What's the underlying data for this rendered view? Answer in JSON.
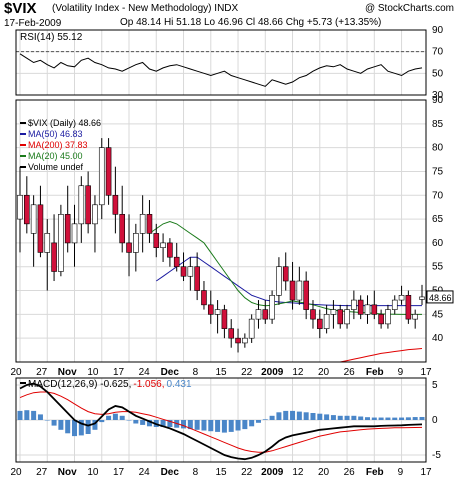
{
  "header": {
    "ticker": "$VIX",
    "name": "(Volatility Index - New Methodology) INDX",
    "credit": "@ StockCharts.com",
    "date": "17-Feb-2009",
    "open_label": "Op",
    "open": "48.14",
    "high_label": "Hi",
    "high": "51.18",
    "low_label": "Lo",
    "low": "46.96",
    "close_label": "Cl",
    "close": "48.66",
    "change_label": "Chg",
    "change": "+5.73 (+13.35%)"
  },
  "colors": {
    "up": "#ffffff",
    "down": "#d0103a",
    "ma50": "#1a1aa0",
    "ma200": "#e00000",
    "ma20": "#1a7a1a",
    "macd_line": "#000000",
    "macd_signal": "#e00000",
    "histogram": "#4a86c8",
    "grid": "#d9d9d9"
  },
  "chart_data": [
    {
      "type": "line",
      "panel": "RSI",
      "legend": "RSI(14) 55.12",
      "ylim": [
        30,
        90
      ],
      "yticks": [
        90,
        70,
        50,
        30
      ],
      "reference_lines": [
        70,
        30
      ],
      "values": [
        68,
        64,
        60,
        62,
        58,
        55,
        60,
        57,
        56,
        62,
        64,
        60,
        58,
        55,
        54,
        52,
        55,
        58,
        60,
        54,
        52,
        55,
        57,
        58,
        56,
        54,
        52,
        50,
        48,
        50,
        52,
        48,
        46,
        44,
        42,
        40,
        38,
        44,
        42,
        40,
        42,
        46,
        48,
        52,
        55,
        57,
        56,
        58,
        54,
        52,
        50,
        54,
        56,
        58,
        52,
        50,
        48,
        52,
        54,
        55
      ]
    },
    {
      "type": "candlestick",
      "panel": "Price",
      "ylim": [
        35,
        90
      ],
      "yticks": [
        90,
        85,
        80,
        75,
        70,
        65,
        60,
        55,
        50,
        45,
        40
      ],
      "last_value": "48.66",
      "legend": [
        {
          "label": "$VIX (Daily) 48.66",
          "key": "price"
        },
        {
          "label": "MA(50) 46.83",
          "key": "ma50"
        },
        {
          "label": "MA(200) 37.83",
          "key": "ma200"
        },
        {
          "label": "MA(20) 45.00",
          "key": "ma20"
        },
        {
          "label": "Volume undef",
          "key": "volume"
        }
      ],
      "x_tick_labels": [
        "20",
        "27",
        "Nov",
        "10",
        "17",
        "24",
        "Dec",
        "8",
        "15",
        "22",
        "2009",
        "12",
        "20",
        "26",
        "Feb",
        "9",
        "17"
      ],
      "candles": [
        {
          "o": 65,
          "h": 76,
          "l": 58,
          "c": 70
        },
        {
          "o": 70,
          "h": 74,
          "l": 62,
          "c": 64
        },
        {
          "o": 62,
          "h": 70,
          "l": 55,
          "c": 68
        },
        {
          "o": 68,
          "h": 72,
          "l": 57,
          "c": 58
        },
        {
          "o": 58,
          "h": 65,
          "l": 50,
          "c": 62
        },
        {
          "o": 60,
          "h": 66,
          "l": 52,
          "c": 54
        },
        {
          "o": 54,
          "h": 68,
          "l": 53,
          "c": 66
        },
        {
          "o": 66,
          "h": 72,
          "l": 58,
          "c": 60
        },
        {
          "o": 60,
          "h": 68,
          "l": 55,
          "c": 64
        },
        {
          "o": 64,
          "h": 74,
          "l": 60,
          "c": 72
        },
        {
          "o": 72,
          "h": 75,
          "l": 62,
          "c": 64
        },
        {
          "o": 64,
          "h": 70,
          "l": 58,
          "c": 68
        },
        {
          "o": 68,
          "h": 82,
          "l": 65,
          "c": 80
        },
        {
          "o": 80,
          "h": 82,
          "l": 68,
          "c": 70
        },
        {
          "o": 70,
          "h": 76,
          "l": 62,
          "c": 66
        },
        {
          "o": 66,
          "h": 72,
          "l": 58,
          "c": 60
        },
        {
          "o": 60,
          "h": 66,
          "l": 53,
          "c": 58
        },
        {
          "o": 58,
          "h": 64,
          "l": 54,
          "c": 62
        },
        {
          "o": 62,
          "h": 70,
          "l": 58,
          "c": 66
        },
        {
          "o": 66,
          "h": 69,
          "l": 60,
          "c": 62
        },
        {
          "o": 62,
          "h": 64,
          "l": 57,
          "c": 59
        },
        {
          "o": 59,
          "h": 62,
          "l": 56,
          "c": 60
        },
        {
          "o": 60,
          "h": 61,
          "l": 55,
          "c": 57
        },
        {
          "o": 57,
          "h": 60,
          "l": 54,
          "c": 55
        },
        {
          "o": 55,
          "h": 58,
          "l": 52,
          "c": 53
        },
        {
          "o": 53,
          "h": 57,
          "l": 50,
          "c": 55
        },
        {
          "o": 55,
          "h": 58,
          "l": 48,
          "c": 50
        },
        {
          "o": 50,
          "h": 52,
          "l": 46,
          "c": 47
        },
        {
          "o": 47,
          "h": 50,
          "l": 43,
          "c": 45
        },
        {
          "o": 45,
          "h": 48,
          "l": 41,
          "c": 46
        },
        {
          "o": 46,
          "h": 47,
          "l": 40,
          "c": 42
        },
        {
          "o": 42,
          "h": 44,
          "l": 38,
          "c": 40
        },
        {
          "o": 40,
          "h": 42,
          "l": 37,
          "c": 39
        },
        {
          "o": 39,
          "h": 41,
          "l": 38,
          "c": 40
        },
        {
          "o": 40,
          "h": 45,
          "l": 39,
          "c": 44
        },
        {
          "o": 44,
          "h": 48,
          "l": 42,
          "c": 46
        },
        {
          "o": 46,
          "h": 48,
          "l": 43,
          "c": 44
        },
        {
          "o": 44,
          "h": 50,
          "l": 43,
          "c": 49
        },
        {
          "o": 49,
          "h": 57,
          "l": 47,
          "c": 55
        },
        {
          "o": 55,
          "h": 58,
          "l": 50,
          "c": 52
        },
        {
          "o": 52,
          "h": 56,
          "l": 46,
          "c": 48
        },
        {
          "o": 48,
          "h": 55,
          "l": 47,
          "c": 52
        },
        {
          "o": 52,
          "h": 54,
          "l": 44,
          "c": 46
        },
        {
          "o": 46,
          "h": 48,
          "l": 42,
          "c": 44
        },
        {
          "o": 44,
          "h": 46,
          "l": 40,
          "c": 42
        },
        {
          "o": 42,
          "h": 47,
          "l": 41,
          "c": 45
        },
        {
          "o": 45,
          "h": 48,
          "l": 42,
          "c": 46
        },
        {
          "o": 46,
          "h": 47,
          "l": 42,
          "c": 43
        },
        {
          "o": 43,
          "h": 47,
          "l": 42,
          "c": 46
        },
        {
          "o": 46,
          "h": 50,
          "l": 44,
          "c": 48
        },
        {
          "o": 48,
          "h": 49,
          "l": 44,
          "c": 45
        },
        {
          "o": 45,
          "h": 49,
          "l": 43,
          "c": 47
        },
        {
          "o": 47,
          "h": 50,
          "l": 44,
          "c": 45
        },
        {
          "o": 45,
          "h": 46,
          "l": 42,
          "c": 43
        },
        {
          "o": 43,
          "h": 47,
          "l": 42,
          "c": 46
        },
        {
          "o": 46,
          "h": 49,
          "l": 45,
          "c": 48
        },
        {
          "o": 48,
          "h": 51,
          "l": 47,
          "c": 49
        },
        {
          "o": 49,
          "h": 50,
          "l": 43,
          "c": 44
        },
        {
          "o": 44,
          "h": 46,
          "l": 42,
          "c": 45
        },
        {
          "o": 48.14,
          "h": 51.18,
          "l": 46.96,
          "c": 48.66
        }
      ],
      "ma50": [
        null,
        null,
        null,
        null,
        null,
        null,
        null,
        null,
        null,
        null,
        null,
        null,
        null,
        null,
        null,
        null,
        null,
        null,
        null,
        null,
        52,
        53,
        54,
        55,
        56,
        57,
        57,
        56,
        55,
        54,
        53,
        52,
        51,
        50,
        49,
        48.5,
        48,
        47.8,
        47.6,
        47.5,
        47.4,
        47.3,
        47.2,
        47.1,
        47,
        46.95,
        46.9,
        46.87,
        46.85,
        46.84,
        46.83,
        46.83,
        46.83,
        46.83,
        46.83,
        46.83,
        46.83,
        46.83,
        46.83,
        46.83
      ],
      "ma200": [
        null,
        null,
        null,
        null,
        null,
        null,
        null,
        null,
        null,
        null,
        null,
        null,
        null,
        null,
        null,
        null,
        null,
        null,
        null,
        null,
        null,
        null,
        null,
        null,
        null,
        null,
        null,
        null,
        null,
        null,
        null,
        null,
        null,
        null,
        null,
        null,
        null,
        null,
        null,
        null,
        null,
        null,
        null,
        null,
        null,
        null,
        null,
        35,
        35.3,
        35.6,
        35.9,
        36.2,
        36.5,
        36.8,
        37,
        37.2,
        37.4,
        37.6,
        37.7,
        37.83
      ],
      "ma20": [
        null,
        null,
        null,
        null,
        null,
        null,
        null,
        null,
        null,
        null,
        null,
        null,
        null,
        null,
        null,
        null,
        null,
        null,
        null,
        62,
        63,
        64,
        64.5,
        64,
        63,
        62,
        61,
        60,
        58,
        56,
        54,
        52,
        50,
        48.5,
        47.5,
        47,
        46.8,
        46.9,
        47.2,
        47.5,
        47.8,
        47.6,
        47.3,
        47,
        46.6,
        46.2,
        45.9,
        45.7,
        45.6,
        45.5,
        45.4,
        45.3,
        45.2,
        45.1,
        45.05,
        45.02,
        45,
        45,
        45,
        45
      ]
    },
    {
      "type": "line",
      "panel": "MACD",
      "legend": {
        "name": "MACD(12,26,9)",
        "macd": "-0.625",
        "signal": "-1.056",
        "hist": "0.431"
      },
      "ylim": [
        -6,
        6
      ],
      "yticks": [
        5,
        0,
        -5
      ],
      "macd": [
        4.5,
        5.0,
        5.2,
        4.8,
        4.0,
        3.0,
        2.0,
        1.0,
        0.0,
        -0.5,
        -0.8,
        -0.5,
        0.5,
        1.5,
        2.0,
        1.8,
        1.2,
        0.6,
        0.2,
        -0.2,
        -0.6,
        -0.9,
        -1.2,
        -1.6,
        -2.0,
        -2.5,
        -3.0,
        -3.5,
        -4.0,
        -4.5,
        -5.0,
        -5.3,
        -5.5,
        -5.6,
        -5.4,
        -5.0,
        -4.5,
        -3.8,
        -3.0,
        -2.5,
        -2.2,
        -2.0,
        -1.8,
        -1.6,
        -1.4,
        -1.3,
        -1.2,
        -1.1,
        -1.0,
        -0.9,
        -0.9,
        -0.9,
        -0.9,
        -0.85,
        -0.8,
        -0.78,
        -0.75,
        -0.7,
        -0.65,
        -0.625
      ],
      "signal": [
        3.2,
        3.6,
        3.9,
        4.0,
        4.0,
        3.8,
        3.4,
        2.9,
        2.3,
        1.7,
        1.2,
        0.9,
        0.8,
        0.9,
        1.1,
        1.2,
        1.2,
        1.1,
        0.9,
        0.7,
        0.4,
        0.1,
        -0.2,
        -0.5,
        -0.8,
        -1.2,
        -1.6,
        -2.0,
        -2.4,
        -2.8,
        -3.2,
        -3.6,
        -4.0,
        -4.3,
        -4.5,
        -4.6,
        -4.6,
        -4.4,
        -4.1,
        -3.8,
        -3.5,
        -3.2,
        -2.9,
        -2.6,
        -2.3,
        -2.1,
        -1.9,
        -1.7,
        -1.6,
        -1.5,
        -1.4,
        -1.3,
        -1.25,
        -1.2,
        -1.15,
        -1.12,
        -1.1,
        -1.08,
        -1.07,
        -1.056
      ]
    }
  ]
}
